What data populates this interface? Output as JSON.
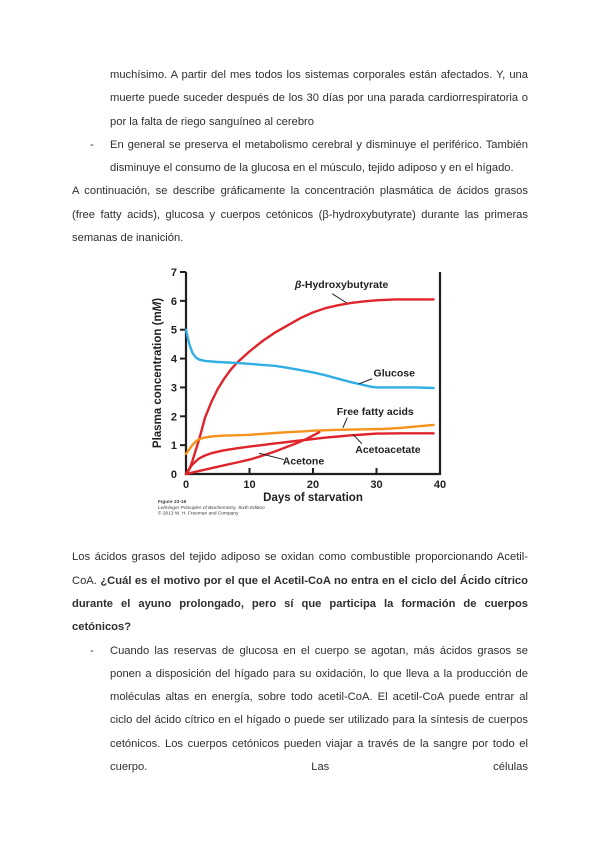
{
  "page": {
    "bullet_marker": "-",
    "paragraph1": "muchísimo. A partir del mes todos los sistemas corporales están afectados. Y, una muerte puede suceder después de los 30 días por una parada cardiorrespiratoria o por la falta de riego sanguíneo al cerebro",
    "bullet1": "En general se preserva el metabolismo cerebral y disminuye el periférico. También disminuye el consumo de la glucosa en el músculo, tejido adiposo y en el hígado.",
    "paragraph2": "A continuación, se describe gráficamente la concentración plasmática de ácidos grasos (free fatty acids), glucosa y cuerpos cetónicos (β-hydroxybutyrate) durante las primeras semanas de inanición.",
    "paragraph3_normal": "Los ácidos grasos del tejido adiposo se oxidan como combustible proporcionando Acetil-CoA. ",
    "paragraph3_bold": "¿Cuál es el motivo por el que el Acetil-CoA no entra en el ciclo del Ácido cítrico durante el ayuno prolongado, pero sí que participa la formación de cuerpos cetónicos?",
    "bullet2": "Cuando las reservas de glucosa en el cuerpo se agotan, más ácidos grasos se ponen a disposición del hígado para su oxidación, lo que lleva a la producción de moléculas altas en energía, sobre todo acetil-CoA. El acetil-CoA puede entrar al ciclo del ácido cítrico en el hígado o puede ser utilizado para la síntesis de cuerpos cetónicos. Los cuerpos cetónicos pueden viajar a través de la sangre por todo el cuerpo. Las células"
  },
  "figure": {
    "caption_line1": "Figure 23-16",
    "caption_line2": "Lehninger Principles of Biochemistry, Sixth Edition",
    "caption_line3": "© 2013 W. H. Freeman and Company"
  },
  "chart_data": {
    "type": "line",
    "title": "",
    "xlabel": "Days of starvation",
    "ylabel": "Plasma concentration (mM)",
    "xlim": [
      0,
      40
    ],
    "ylim": [
      0,
      7
    ],
    "xticks": [
      0,
      10,
      20,
      30,
      40
    ],
    "yticks": [
      0,
      1,
      2,
      3,
      4,
      5,
      6,
      7
    ],
    "grid": false,
    "legend_position": "inline-labels",
    "axis_color": "#231f20",
    "series": [
      {
        "name": "β-Hydroxybutyrate",
        "color": "#e0242b",
        "points": [
          [
            0,
            0
          ],
          [
            0.5,
            0.15
          ],
          [
            1,
            0.45
          ],
          [
            1.5,
            0.8
          ],
          [
            2,
            1.15
          ],
          [
            2.5,
            1.55
          ],
          [
            3,
            1.95
          ],
          [
            4,
            2.5
          ],
          [
            5,
            2.95
          ],
          [
            6,
            3.3
          ],
          [
            7,
            3.6
          ],
          [
            8,
            3.85
          ],
          [
            9,
            4.05
          ],
          [
            10,
            4.25
          ],
          [
            12,
            4.6
          ],
          [
            14,
            4.9
          ],
          [
            16,
            5.15
          ],
          [
            18,
            5.4
          ],
          [
            20,
            5.6
          ],
          [
            22,
            5.75
          ],
          [
            24,
            5.85
          ],
          [
            26,
            5.93
          ],
          [
            28,
            5.98
          ],
          [
            30,
            6.02
          ],
          [
            33,
            6.05
          ],
          [
            36,
            6.05
          ],
          [
            39,
            6.05
          ]
        ]
      },
      {
        "name": "Glucose",
        "color": "#31aee3",
        "points": [
          [
            0,
            5.0
          ],
          [
            0.3,
            4.7
          ],
          [
            0.6,
            4.45
          ],
          [
            1,
            4.2
          ],
          [
            1.5,
            4.05
          ],
          [
            2,
            3.97
          ],
          [
            3,
            3.92
          ],
          [
            5,
            3.88
          ],
          [
            8,
            3.85
          ],
          [
            10,
            3.82
          ],
          [
            12,
            3.78
          ],
          [
            14,
            3.75
          ],
          [
            16,
            3.68
          ],
          [
            18,
            3.6
          ],
          [
            20,
            3.52
          ],
          [
            22,
            3.42
          ],
          [
            24,
            3.3
          ],
          [
            26,
            3.18
          ],
          [
            28,
            3.08
          ],
          [
            29,
            3.03
          ],
          [
            30,
            3.0
          ],
          [
            33,
            3.0
          ],
          [
            36,
            3.0
          ],
          [
            39,
            2.98
          ]
        ]
      },
      {
        "name": "Free fatty acids",
        "color": "#f6921e",
        "points": [
          [
            0,
            0.7
          ],
          [
            0.5,
            0.85
          ],
          [
            1,
            1.0
          ],
          [
            1.5,
            1.12
          ],
          [
            2,
            1.2
          ],
          [
            3,
            1.27
          ],
          [
            4,
            1.3
          ],
          [
            6,
            1.33
          ],
          [
            8,
            1.34
          ],
          [
            10,
            1.36
          ],
          [
            12,
            1.39
          ],
          [
            14,
            1.42
          ],
          [
            16,
            1.45
          ],
          [
            18,
            1.47
          ],
          [
            20,
            1.5
          ],
          [
            24,
            1.53
          ],
          [
            28,
            1.55
          ],
          [
            31,
            1.56
          ],
          [
            34,
            1.6
          ],
          [
            37,
            1.66
          ],
          [
            39,
            1.7
          ]
        ]
      },
      {
        "name": "Acetoacetate",
        "color": "#e0242b",
        "points": [
          [
            0,
            0
          ],
          [
            0.5,
            0.18
          ],
          [
            1,
            0.33
          ],
          [
            2,
            0.53
          ],
          [
            3,
            0.64
          ],
          [
            4,
            0.72
          ],
          [
            6,
            0.82
          ],
          [
            8,
            0.89
          ],
          [
            10,
            0.95
          ],
          [
            12,
            1.0
          ],
          [
            14,
            1.06
          ],
          [
            16,
            1.11
          ],
          [
            18,
            1.16
          ],
          [
            20,
            1.21
          ],
          [
            22,
            1.26
          ],
          [
            24,
            1.3
          ],
          [
            26,
            1.34
          ],
          [
            28,
            1.37
          ],
          [
            30,
            1.4
          ],
          [
            34,
            1.41
          ],
          [
            39,
            1.41
          ]
        ]
      },
      {
        "name": "Acetone",
        "color": "#e0242b",
        "points": [
          [
            0,
            0
          ],
          [
            2,
            0.1
          ],
          [
            4,
            0.2
          ],
          [
            6,
            0.3
          ],
          [
            8,
            0.4
          ],
          [
            10,
            0.5
          ],
          [
            12,
            0.63
          ],
          [
            14,
            0.78
          ],
          [
            16,
            0.95
          ],
          [
            17,
            1.03
          ],
          [
            18,
            1.12
          ],
          [
            19,
            1.22
          ],
          [
            20,
            1.33
          ],
          [
            21,
            1.45
          ]
        ]
      }
    ],
    "labels": [
      {
        "text": "β-Hydroxybutyrate",
        "x": 24.5,
        "y": 6.45,
        "anchor": "middle",
        "leader": [
          23.0,
          6.25,
          25.3,
          5.93
        ]
      },
      {
        "text": "Glucose",
        "x": 32.8,
        "y": 3.38,
        "anchor": "middle",
        "leader": [
          29.3,
          3.3,
          27.2,
          3.12
        ]
      },
      {
        "text": "Free fatty acids",
        "x": 29.8,
        "y": 2.05,
        "anchor": "middle",
        "leader": [
          25.4,
          1.95,
          24.7,
          1.6
        ]
      },
      {
        "text": "Acetoacetate",
        "x": 31.8,
        "y": 0.72,
        "anchor": "middle",
        "leader": [
          26.3,
          1.37,
          27.7,
          1.05
        ]
      },
      {
        "text": "Acetone",
        "x": 18.5,
        "y": 0.33,
        "anchor": "middle",
        "leader": [
          15.4,
          0.5,
          11.5,
          0.72
        ]
      }
    ]
  }
}
